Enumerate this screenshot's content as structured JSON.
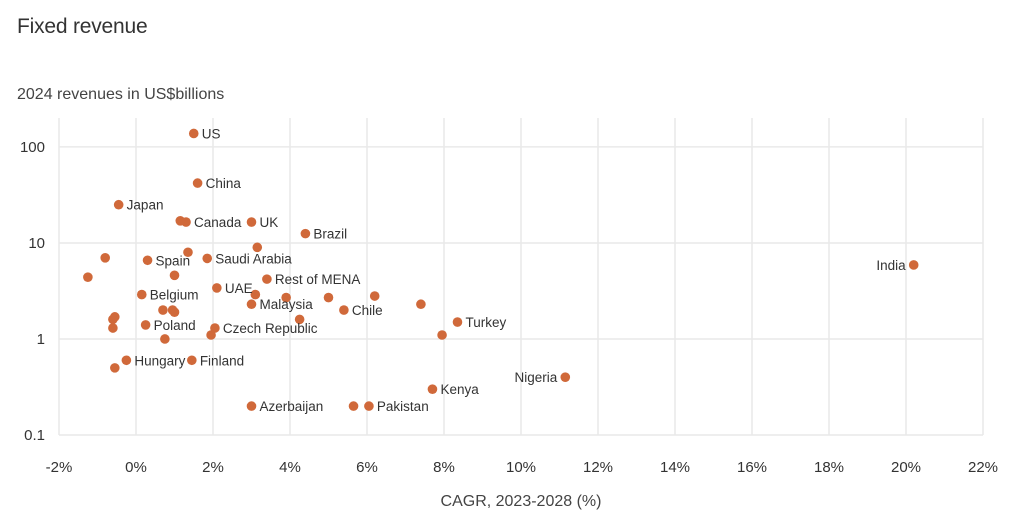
{
  "chart_data": {
    "type": "scatter",
    "title": "Fixed revenue",
    "subtitle": "2024 revenues in US$billions",
    "xlabel": "CAGR, 2023-2028 (%)",
    "ylabel": "",
    "x_scale": "linear",
    "y_scale": "log",
    "xlim": [
      -2,
      22
    ],
    "ylim": [
      0.1,
      200
    ],
    "x_ticks": [
      -2,
      0,
      2,
      4,
      6,
      8,
      10,
      12,
      14,
      16,
      18,
      20,
      22
    ],
    "x_tick_labels": [
      "-2%",
      "0%",
      "2%",
      "4%",
      "6%",
      "8%",
      "10%",
      "12%",
      "14%",
      "16%",
      "18%",
      "20%",
      "22%"
    ],
    "y_ticks": [
      0.1,
      1,
      10,
      100
    ],
    "y_tick_labels": [
      "0.1",
      "1",
      "10",
      "100"
    ],
    "grid": true,
    "marker_color": "#d0693a",
    "points": [
      {
        "label": "US",
        "x": 1.5,
        "y": 138
      },
      {
        "label": "China",
        "x": 1.6,
        "y": 42
      },
      {
        "label": "Japan",
        "x": -0.45,
        "y": 25
      },
      {
        "label": "Canada",
        "x": 1.3,
        "y": 16.5
      },
      {
        "label": "UK",
        "x": 3.0,
        "y": 16.5
      },
      {
        "label": "Brazil",
        "x": 4.4,
        "y": 12.5
      },
      {
        "label": "Saudi Arabia",
        "x": 1.85,
        "y": 6.9
      },
      {
        "label": "Spain",
        "x": 0.3,
        "y": 6.6
      },
      {
        "label": "Rest of MENA",
        "x": 3.4,
        "y": 4.2
      },
      {
        "label": "UAE",
        "x": 2.1,
        "y": 3.4
      },
      {
        "label": "Belgium",
        "x": 0.15,
        "y": 2.9
      },
      {
        "label": "Malaysia",
        "x": 3.0,
        "y": 2.3
      },
      {
        "label": "Chile",
        "x": 5.4,
        "y": 2.0
      },
      {
        "label": "Poland",
        "x": 0.25,
        "y": 1.4
      },
      {
        "label": "Czech Republic",
        "x": 2.05,
        "y": 1.3
      },
      {
        "label": "Turkey",
        "x": 8.35,
        "y": 1.5
      },
      {
        "label": "Hungary",
        "x": -0.25,
        "y": 0.6
      },
      {
        "label": "Finland",
        "x": 1.45,
        "y": 0.6
      },
      {
        "label": "Azerbaijan",
        "x": 3.0,
        "y": 0.2
      },
      {
        "label": "Pakistan",
        "x": 6.05,
        "y": 0.2
      },
      {
        "label": "Kenya",
        "x": 7.7,
        "y": 0.3
      },
      {
        "label": "Nigeria",
        "x": 11.15,
        "y": 0.4
      },
      {
        "label": "India",
        "x": 20.2,
        "y": 5.9
      },
      {
        "label": "",
        "x": 1.15,
        "y": 17
      },
      {
        "label": "",
        "x": 3.15,
        "y": 9.0
      },
      {
        "label": "",
        "x": 1.35,
        "y": 8.0
      },
      {
        "label": "",
        "x": -0.8,
        "y": 7.0
      },
      {
        "label": "",
        "x": -1.25,
        "y": 4.4
      },
      {
        "label": "",
        "x": 1.0,
        "y": 4.6
      },
      {
        "label": "",
        "x": 3.1,
        "y": 2.9
      },
      {
        "label": "",
        "x": 3.9,
        "y": 2.7
      },
      {
        "label": "",
        "x": 5.0,
        "y": 2.7
      },
      {
        "label": "",
        "x": 6.2,
        "y": 2.8
      },
      {
        "label": "",
        "x": 7.4,
        "y": 2.3
      },
      {
        "label": "",
        "x": 0.7,
        "y": 2.0
      },
      {
        "label": "",
        "x": 0.95,
        "y": 2.0
      },
      {
        "label": "",
        "x": 1.0,
        "y": 1.9
      },
      {
        "label": "",
        "x": -0.55,
        "y": 1.7
      },
      {
        "label": "",
        "x": -0.6,
        "y": 1.6
      },
      {
        "label": "",
        "x": -0.6,
        "y": 1.3
      },
      {
        "label": "",
        "x": 4.25,
        "y": 1.6
      },
      {
        "label": "",
        "x": 1.95,
        "y": 1.1
      },
      {
        "label": "",
        "x": 7.95,
        "y": 1.1
      },
      {
        "label": "",
        "x": 0.75,
        "y": 1.0
      },
      {
        "label": "",
        "x": -0.55,
        "y": 0.5
      },
      {
        "label": "",
        "x": 5.65,
        "y": 0.2
      }
    ]
  }
}
